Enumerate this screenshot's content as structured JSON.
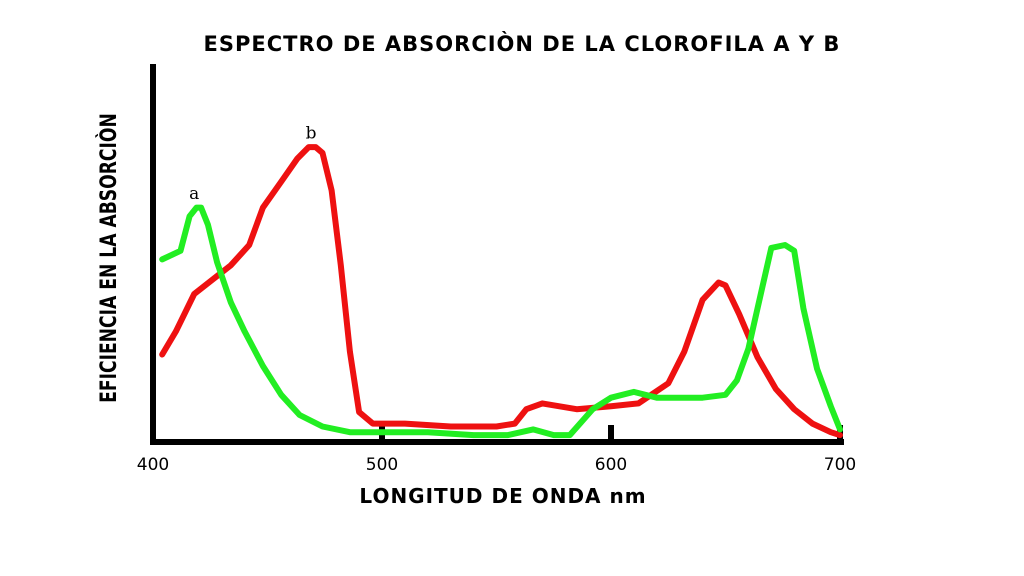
{
  "chart_data": {
    "type": "line",
    "title": "ESPECTRO DE ABSORCIÒN DE LA CLOROFILA  A  Y  B",
    "xlabel": "LONGITUD DE ONDA  nm",
    "ylabel": "EFICIENCIA EN LA ABSORCIÒN",
    "xlim": [
      400,
      700
    ],
    "ylim": [
      0,
      100
    ],
    "xticks": [
      "400",
      "500",
      "600",
      "700"
    ],
    "xtick_values": [
      400,
      500,
      600,
      700
    ],
    "grid": false,
    "legend": "none",
    "series": [
      {
        "name": "a",
        "color": "#22ee22",
        "points": [
          [
            404,
            62
          ],
          [
            412,
            65
          ],
          [
            416,
            77
          ],
          [
            419,
            80
          ],
          [
            421,
            80
          ],
          [
            424,
            74
          ],
          [
            428,
            61
          ],
          [
            434,
            47
          ],
          [
            440,
            37
          ],
          [
            448,
            25
          ],
          [
            456,
            15
          ],
          [
            464,
            8
          ],
          [
            474,
            4
          ],
          [
            486,
            2
          ],
          [
            500,
            2
          ],
          [
            520,
            2
          ],
          [
            540,
            1
          ],
          [
            555,
            1
          ],
          [
            566,
            3
          ],
          [
            575,
            1
          ],
          [
            582,
            1
          ],
          [
            592,
            10
          ],
          [
            600,
            14
          ],
          [
            610,
            16
          ],
          [
            620,
            14
          ],
          [
            630,
            14
          ],
          [
            640,
            14
          ],
          [
            650,
            15
          ],
          [
            655,
            20
          ],
          [
            660,
            31
          ],
          [
            666,
            52
          ],
          [
            670,
            66
          ],
          [
            676,
            67
          ],
          [
            680,
            65
          ],
          [
            684,
            45
          ],
          [
            690,
            24
          ],
          [
            696,
            11
          ],
          [
            700,
            3
          ]
        ]
      },
      {
        "name": "b",
        "color": "#ee1111",
        "points": [
          [
            404,
            29
          ],
          [
            410,
            37
          ],
          [
            418,
            50
          ],
          [
            426,
            55
          ],
          [
            434,
            60
          ],
          [
            442,
            67
          ],
          [
            448,
            80
          ],
          [
            456,
            89
          ],
          [
            463,
            97
          ],
          [
            468,
            101
          ],
          [
            471,
            101
          ],
          [
            474,
            99
          ],
          [
            478,
            86
          ],
          [
            482,
            60
          ],
          [
            486,
            30
          ],
          [
            490,
            9
          ],
          [
            496,
            5
          ],
          [
            510,
            5
          ],
          [
            530,
            4
          ],
          [
            550,
            4
          ],
          [
            558,
            5
          ],
          [
            563,
            10
          ],
          [
            570,
            12
          ],
          [
            585,
            10
          ],
          [
            600,
            11
          ],
          [
            612,
            12
          ],
          [
            625,
            19
          ],
          [
            632,
            30
          ],
          [
            640,
            48
          ],
          [
            647,
            54
          ],
          [
            650,
            53
          ],
          [
            656,
            43
          ],
          [
            664,
            28
          ],
          [
            672,
            17
          ],
          [
            680,
            10
          ],
          [
            688,
            5
          ],
          [
            696,
            2
          ],
          [
            700,
            1
          ]
        ]
      }
    ],
    "annotations": [
      {
        "text": "a",
        "x": 418,
        "y": 83
      },
      {
        "text": "b",
        "x": 469,
        "y": 104
      }
    ]
  }
}
